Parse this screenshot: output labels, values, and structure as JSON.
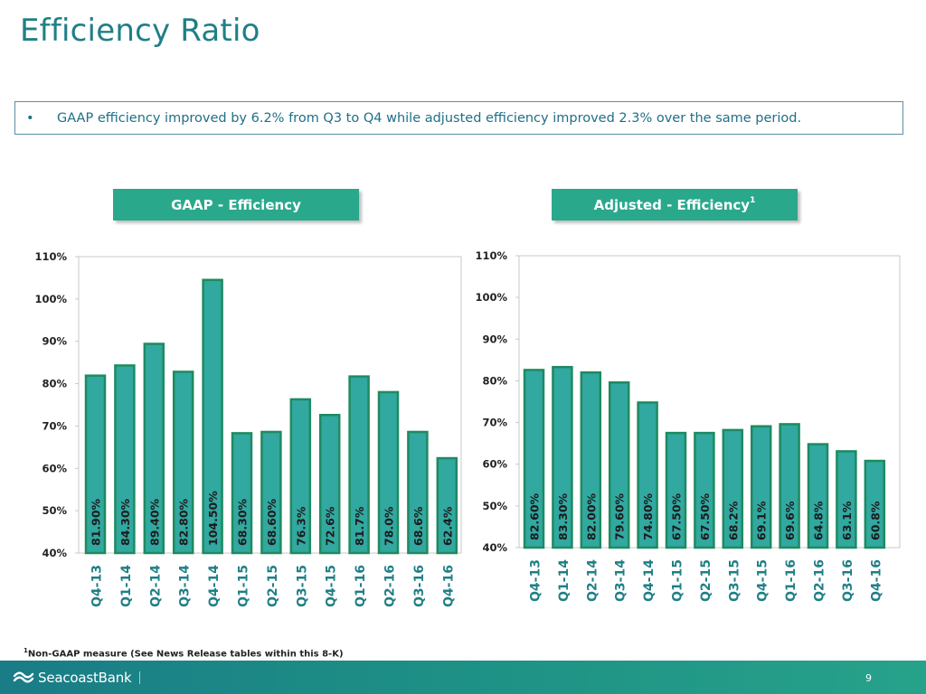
{
  "page": {
    "title": "Efficiency Ratio",
    "bullet_symbol": "•",
    "bullet_text": "GAAP efficiency improved by 6.2% from Q3 to Q4 while adjusted efficiency improved 2.3% over the same period.",
    "footnote_marker": "1",
    "footnote_text": "Non-GAAP measure (See News Release tables within this 8-K)",
    "logo_text": "SeacoastBank",
    "page_number": "9"
  },
  "colors": {
    "title": "#1f7f86",
    "bar_fill": "#31a8a0",
    "bar_stroke": "#1f8a60",
    "label_bg": "#2aa88c",
    "axis": "#c9c9c9",
    "footer": "#1d8f85"
  },
  "chart_data": [
    {
      "type": "bar",
      "title": "GAAP - Efficiency",
      "title_sup": "",
      "categories": [
        "Q4-13",
        "Q1-14",
        "Q2-14",
        "Q3-14",
        "Q4-14",
        "Q1-15",
        "Q2-15",
        "Q3-15",
        "Q4-15",
        "Q1-16",
        "Q2-16",
        "Q3-16",
        "Q4-16"
      ],
      "values": [
        81.9,
        84.3,
        89.4,
        82.8,
        104.5,
        68.3,
        68.6,
        76.3,
        72.6,
        81.7,
        78.0,
        68.6,
        62.4
      ],
      "data_labels": [
        "81.90%",
        "84.30%",
        "89.40%",
        "82.80%",
        "104.50%",
        "68.30%",
        "68.60%",
        "76.3%",
        "72.6%",
        "81.7%",
        "78.0%",
        "68.6%",
        "62.4%"
      ],
      "ylim": [
        40,
        110
      ],
      "yticks": [
        "40%",
        "50%",
        "60%",
        "70%",
        "80%",
        "90%",
        "100%",
        "110%"
      ],
      "grid": false
    },
    {
      "type": "bar",
      "title": "Adjusted - Efficiency",
      "title_sup": "1",
      "categories": [
        "Q4-13",
        "Q1-14",
        "Q2-14",
        "Q3-14",
        "Q4-14",
        "Q1-15",
        "Q2-15",
        "Q3-15",
        "Q4-15",
        "Q1-16",
        "Q2-16",
        "Q3-16",
        "Q4-16"
      ],
      "values": [
        82.6,
        83.3,
        82.0,
        79.6,
        74.8,
        67.5,
        67.5,
        68.2,
        69.1,
        69.6,
        64.8,
        63.1,
        60.8
      ],
      "data_labels": [
        "82.60%",
        "83.30%",
        "82.00%",
        "79.60%",
        "74.80%",
        "67.50%",
        "67.50%",
        "68.2%",
        "69.1%",
        "69.6%",
        "64.8%",
        "63.1%",
        "60.8%"
      ],
      "ylim": [
        40,
        110
      ],
      "yticks": [
        "40%",
        "50%",
        "60%",
        "70%",
        "80%",
        "90%",
        "100%",
        "110%"
      ],
      "grid": false
    }
  ]
}
